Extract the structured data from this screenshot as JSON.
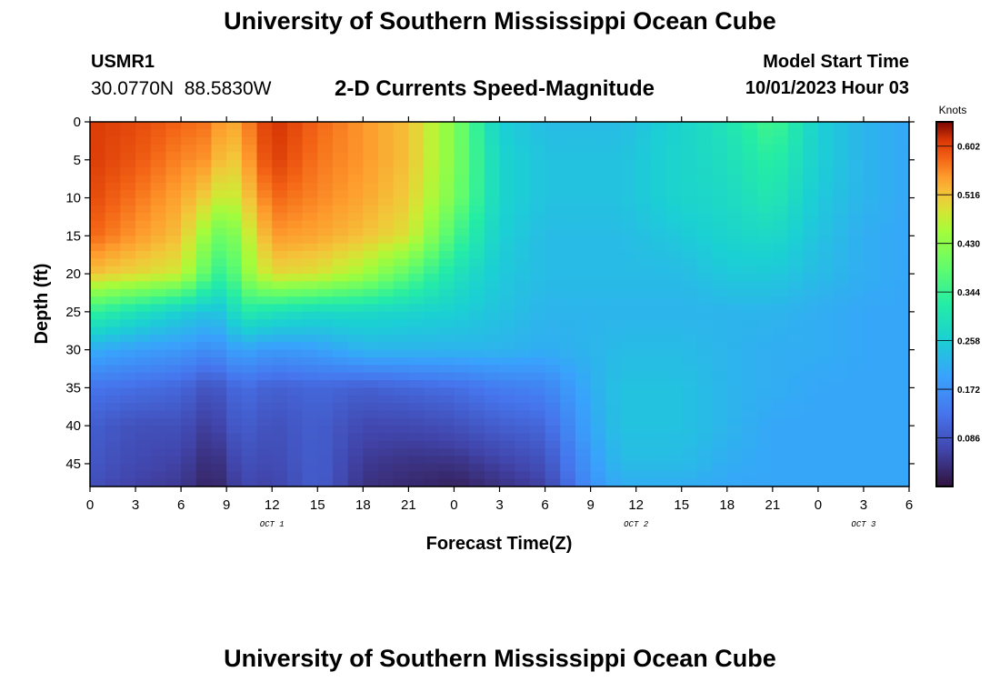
{
  "header": {
    "title": "University of Southern Mississippi Ocean Cube",
    "station": "USMR1",
    "coordinates": "30.0770N  88.5830W",
    "subtitle": "2-D Currents Speed-Magnitude",
    "model_start_label": "Model Start Time",
    "model_start_time": "10/01/2023 Hour 03"
  },
  "footer": {
    "title": "University of Southern Mississippi Ocean Cube"
  },
  "chart_data": {
    "type": "heatmap",
    "title": "2-D Currents Speed-Magnitude",
    "xlabel": "Forecast Time(Z)",
    "ylabel": "Depth (ft)",
    "x_unit": "forecast hours from 00Z Oct 1",
    "xlim": [
      0,
      54
    ],
    "ylim": [
      0,
      48
    ],
    "x_ticks": [
      {
        "t": 0,
        "label": "0"
      },
      {
        "t": 3,
        "label": "3"
      },
      {
        "t": 6,
        "label": "6"
      },
      {
        "t": 9,
        "label": "9"
      },
      {
        "t": 12,
        "label": "12"
      },
      {
        "t": 15,
        "label": "15"
      },
      {
        "t": 18,
        "label": "18"
      },
      {
        "t": 21,
        "label": "21"
      },
      {
        "t": 24,
        "label": "0"
      },
      {
        "t": 27,
        "label": "3"
      },
      {
        "t": 30,
        "label": "6"
      },
      {
        "t": 33,
        "label": "9"
      },
      {
        "t": 36,
        "label": "12"
      },
      {
        "t": 39,
        "label": "15"
      },
      {
        "t": 42,
        "label": "18"
      },
      {
        "t": 45,
        "label": "21"
      },
      {
        "t": 48,
        "label": "0"
      },
      {
        "t": 51,
        "label": "3"
      },
      {
        "t": 54,
        "label": "6"
      }
    ],
    "y_ticks": [
      0,
      5,
      10,
      15,
      20,
      25,
      30,
      35,
      40,
      45
    ],
    "day_labels": [
      {
        "t": 12,
        "label": "OCT 1"
      },
      {
        "t": 36,
        "label": "OCT 2"
      },
      {
        "t": 51,
        "label": "OCT 3"
      }
    ],
    "colorbar": {
      "unit_label": "Knots",
      "min": 0.0,
      "max": 0.645,
      "ticks": [
        0.086,
        0.172,
        0.258,
        0.344,
        0.43,
        0.516,
        0.602
      ],
      "tick_labels": [
        "0.086",
        "0.172",
        "0.258",
        "0.344",
        "0.430",
        "0.516",
        "0.602"
      ]
    },
    "grid_times": [
      0,
      3,
      6,
      8,
      9,
      10,
      12,
      15,
      18,
      21,
      24,
      27,
      30,
      33,
      35,
      39,
      42,
      45,
      48,
      51,
      54
    ],
    "grid_depths": [
      0,
      5,
      10,
      15,
      20,
      25,
      30,
      35,
      40,
      45,
      48
    ],
    "speed_grid": [
      [
        0.61,
        0.6,
        0.58,
        0.57,
        0.53,
        0.55,
        0.62,
        0.58,
        0.55,
        0.52,
        0.42,
        0.26,
        0.23,
        0.23,
        0.23,
        0.27,
        0.3,
        0.36,
        0.26,
        0.22,
        0.2
      ],
      [
        0.61,
        0.59,
        0.56,
        0.55,
        0.5,
        0.53,
        0.61,
        0.57,
        0.55,
        0.52,
        0.42,
        0.27,
        0.24,
        0.24,
        0.24,
        0.27,
        0.29,
        0.33,
        0.26,
        0.22,
        0.2
      ],
      [
        0.6,
        0.57,
        0.54,
        0.5,
        0.46,
        0.5,
        0.58,
        0.56,
        0.54,
        0.51,
        0.41,
        0.27,
        0.24,
        0.24,
        0.24,
        0.27,
        0.28,
        0.31,
        0.25,
        0.22,
        0.2
      ],
      [
        0.58,
        0.55,
        0.52,
        0.42,
        0.38,
        0.45,
        0.55,
        0.54,
        0.52,
        0.49,
        0.36,
        0.26,
        0.23,
        0.23,
        0.23,
        0.25,
        0.27,
        0.28,
        0.24,
        0.21,
        0.2
      ],
      [
        0.52,
        0.5,
        0.48,
        0.36,
        0.33,
        0.42,
        0.5,
        0.49,
        0.45,
        0.38,
        0.3,
        0.25,
        0.23,
        0.23,
        0.23,
        0.23,
        0.25,
        0.25,
        0.23,
        0.21,
        0.2
      ],
      [
        0.34,
        0.3,
        0.26,
        0.24,
        0.25,
        0.32,
        0.3,
        0.28,
        0.28,
        0.27,
        0.26,
        0.24,
        0.22,
        0.22,
        0.22,
        0.22,
        0.22,
        0.22,
        0.21,
        0.2,
        0.2
      ],
      [
        0.21,
        0.19,
        0.18,
        0.16,
        0.18,
        0.2,
        0.18,
        0.19,
        0.22,
        0.22,
        0.22,
        0.22,
        0.21,
        0.22,
        0.23,
        0.23,
        0.22,
        0.21,
        0.21,
        0.2,
        0.2
      ],
      [
        0.13,
        0.12,
        0.11,
        0.08,
        0.1,
        0.12,
        0.1,
        0.11,
        0.1,
        0.11,
        0.12,
        0.14,
        0.15,
        0.21,
        0.24,
        0.24,
        0.22,
        0.21,
        0.2,
        0.2,
        0.2
      ],
      [
        0.1,
        0.08,
        0.08,
        0.05,
        0.08,
        0.1,
        0.08,
        0.1,
        0.07,
        0.07,
        0.08,
        0.1,
        0.11,
        0.2,
        0.24,
        0.24,
        0.22,
        0.2,
        0.2,
        0.2,
        0.2
      ],
      [
        0.09,
        0.07,
        0.06,
        0.03,
        0.05,
        0.08,
        0.07,
        0.1,
        0.05,
        0.04,
        0.04,
        0.06,
        0.08,
        0.18,
        0.23,
        0.23,
        0.21,
        0.2,
        0.2,
        0.2,
        0.2
      ],
      [
        0.08,
        0.06,
        0.05,
        0.02,
        0.04,
        0.07,
        0.06,
        0.1,
        0.04,
        0.03,
        0.02,
        0.04,
        0.06,
        0.17,
        0.21,
        0.21,
        0.2,
        0.2,
        0.2,
        0.2,
        0.2
      ]
    ]
  }
}
